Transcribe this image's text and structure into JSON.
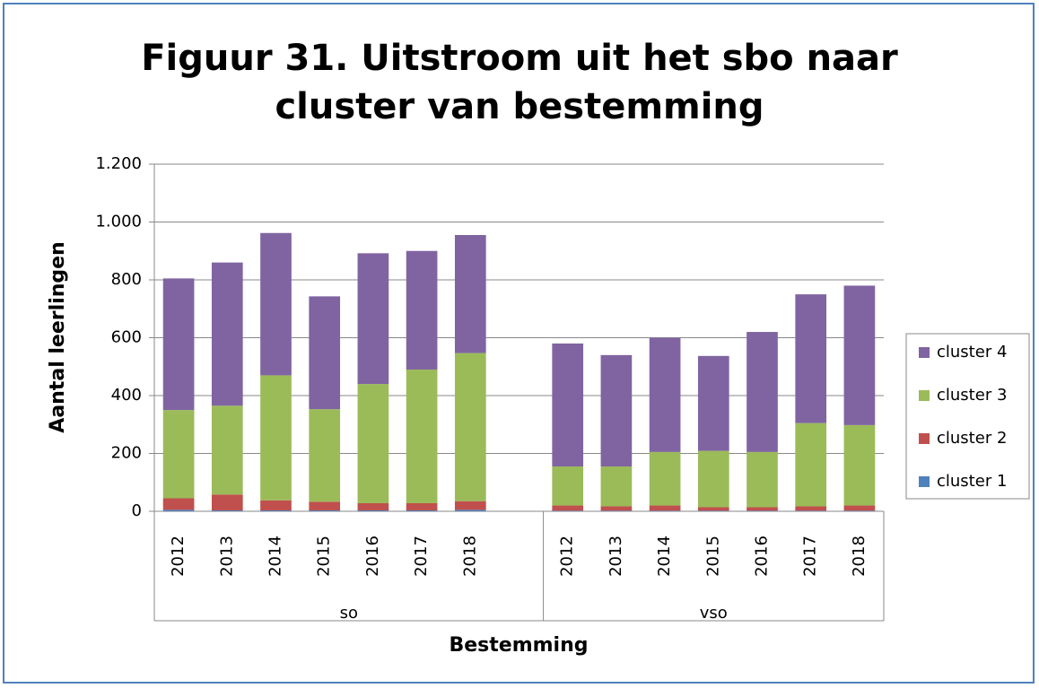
{
  "chart_data": {
    "type": "stacked_bar",
    "title": "Figuur 31. Uitstroom uit het sbo naar cluster van bestemming",
    "xlabel": "Bestemming",
    "ylabel": "Aantal leerlingen",
    "groups": [
      {
        "name": "so",
        "categories": [
          "2012",
          "2013",
          "2014",
          "2015",
          "2016",
          "2017",
          "2018"
        ]
      },
      {
        "name": "vso",
        "categories": [
          "2012",
          "2013",
          "2014",
          "2015",
          "2016",
          "2017",
          "2018"
        ]
      }
    ],
    "series": [
      {
        "name": "cluster 1",
        "color": "#4f81bd",
        "values": [
          5,
          3,
          3,
          3,
          3,
          3,
          5,
          2,
          2,
          2,
          2,
          2,
          2,
          2
        ]
      },
      {
        "name": "cluster 2",
        "color": "#c0504d",
        "values": [
          40,
          55,
          35,
          30,
          25,
          25,
          30,
          18,
          15,
          18,
          12,
          12,
          15,
          18
        ]
      },
      {
        "name": "cluster 3",
        "color": "#9bbb59",
        "values": [
          305,
          307,
          432,
          320,
          412,
          462,
          512,
          135,
          138,
          185,
          195,
          191,
          288,
          278
        ]
      },
      {
        "name": "cluster 4",
        "color": "#8064a2",
        "values": [
          455,
          495,
          492,
          390,
          452,
          410,
          408,
          425,
          385,
          395,
          328,
          415,
          445,
          482
        ]
      }
    ],
    "ylim": [
      0,
      1200
    ],
    "yticks": [
      0,
      200,
      400,
      600,
      800,
      {
        "value": 1000,
        "label": "1.000"
      },
      {
        "value": 1200,
        "label": "1.200"
      }
    ],
    "grid": true,
    "legend": "right"
  }
}
